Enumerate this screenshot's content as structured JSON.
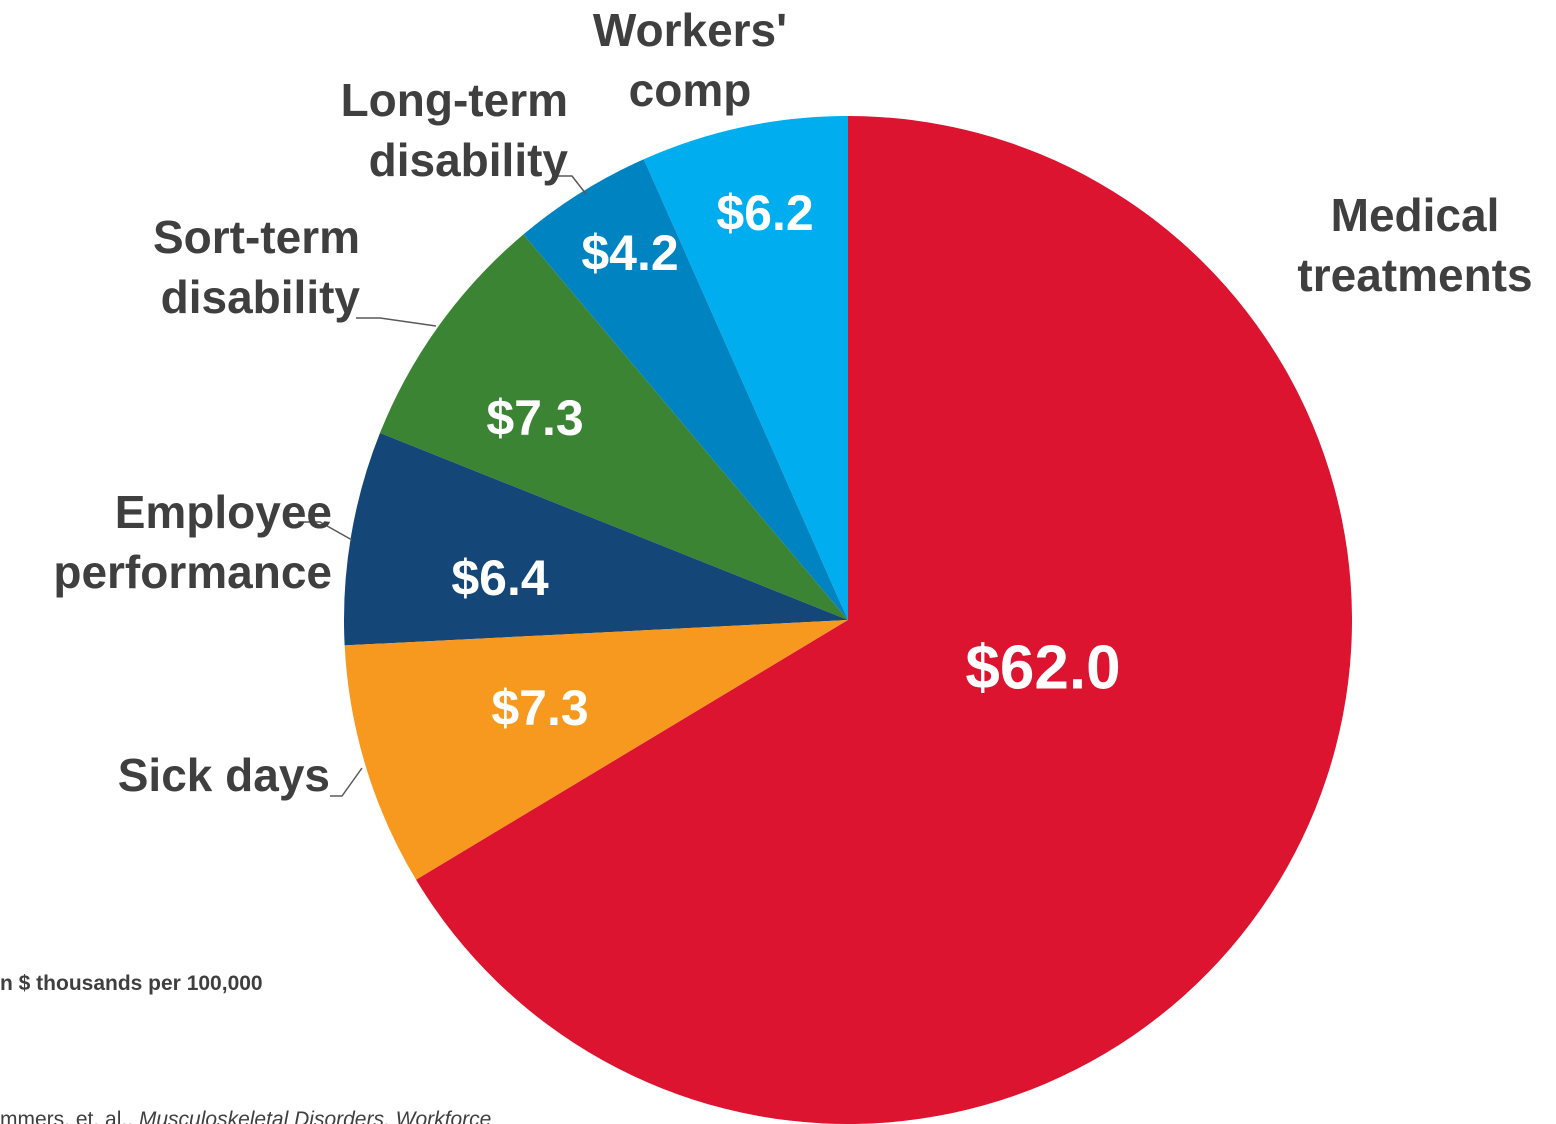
{
  "chart_data": {
    "type": "pie",
    "categories": [
      "Medical treatments",
      "Sick days",
      "Employee performance",
      "Sort-term disability",
      "Long-term disability",
      "Workers' comp"
    ],
    "values": [
      62.0,
      7.3,
      6.4,
      7.3,
      4.2,
      6.2
    ],
    "value_labels": [
      "$62.0",
      "$7.3",
      "$6.4",
      "$7.3",
      "$4.2",
      "$6.2"
    ],
    "colors": [
      "#dc1430",
      "#f7991e",
      "#144677",
      "#3b8433",
      "#0083c1",
      "#00aeef"
    ],
    "note": "n $ thousands per 100,000",
    "source_author": "mmers, et. al.,",
    "source_title": "Musculoskeletal Disorders, Workforce"
  }
}
